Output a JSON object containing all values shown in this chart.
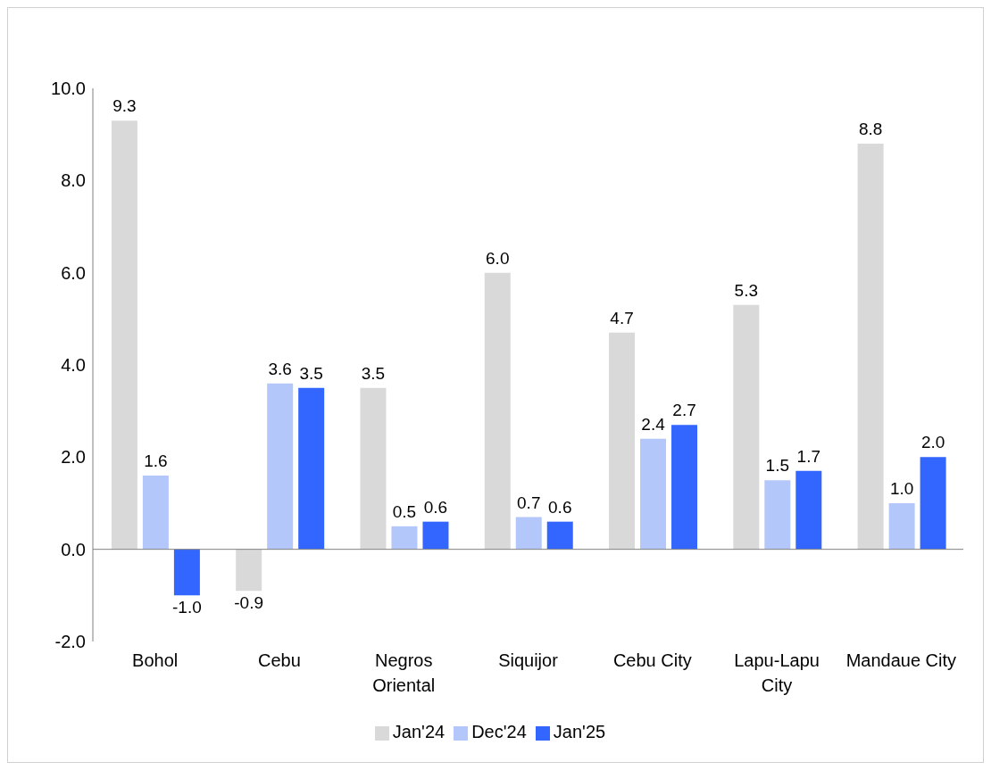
{
  "chart_data": {
    "type": "bar",
    "categories": [
      "Bohol",
      "Cebu",
      "Negros Oriental",
      "Siquijor",
      "Cebu City",
      "Lapu-Lapu City",
      "Mandaue City"
    ],
    "series": [
      {
        "name": "Jan'24",
        "color": "#d9d9d9",
        "values": [
          9.3,
          -0.9,
          3.5,
          6.0,
          4.7,
          5.3,
          8.8
        ],
        "value_labels": [
          "9.3",
          "-0.9",
          "3.5",
          "6.0",
          "4.7",
          "5.3",
          "8.8"
        ]
      },
      {
        "name": "Dec'24",
        "color": "#b4c7fa",
        "values": [
          1.6,
          3.6,
          0.5,
          0.7,
          2.4,
          1.5,
          1.0
        ],
        "value_labels": [
          "1.6",
          "3.6",
          "0.5",
          "0.7",
          "2.4",
          "1.5",
          "1.0"
        ]
      },
      {
        "name": "Jan'25",
        "color": "#3366ff",
        "values": [
          -1.0,
          3.5,
          0.6,
          0.6,
          2.7,
          1.7,
          2.0
        ],
        "value_labels": [
          "-1.0",
          "3.5",
          "0.6",
          "0.6",
          "2.7",
          "1.7",
          "2.0"
        ]
      }
    ],
    "ylim": [
      -2,
      10
    ],
    "yticks": [
      {
        "value": -2,
        "label": "-2.0"
      },
      {
        "value": 0,
        "label": "0.0"
      },
      {
        "value": 2,
        "label": "2.0"
      },
      {
        "value": 4,
        "label": "4.0"
      },
      {
        "value": 6,
        "label": "6.0"
      },
      {
        "value": 8,
        "label": "8.0"
      },
      {
        "value": 10,
        "label": "10.0"
      }
    ],
    "legend": "bottom"
  }
}
